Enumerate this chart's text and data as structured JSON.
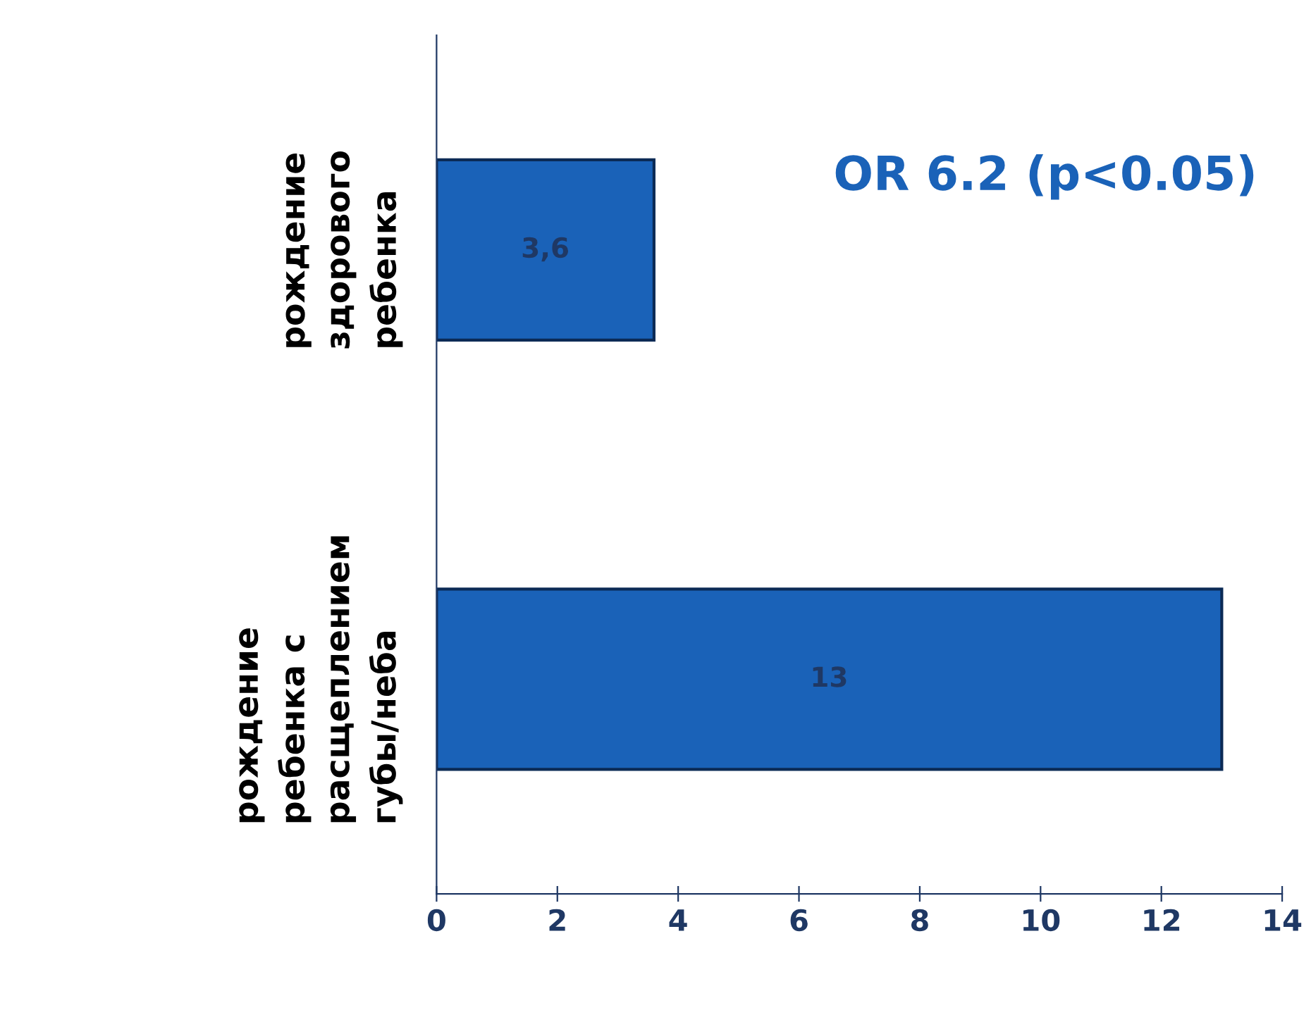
{
  "chart_data": {
    "type": "bar",
    "orientation": "horizontal",
    "categories": [
      "рождение\nздорового\nребенка",
      "рождение\nребенка с\nрасщеплением\nгубы/неба"
    ],
    "values": [
      3.6,
      13
    ],
    "value_labels": [
      "3,6",
      "13"
    ],
    "color": "#1a62b8",
    "xlim": [
      0,
      14
    ],
    "xticks": [
      0,
      2,
      4,
      6,
      8,
      10,
      12,
      14
    ],
    "grid": false,
    "legend": false,
    "annotations": [
      "OR 6.2 (p<0.05)"
    ]
  }
}
